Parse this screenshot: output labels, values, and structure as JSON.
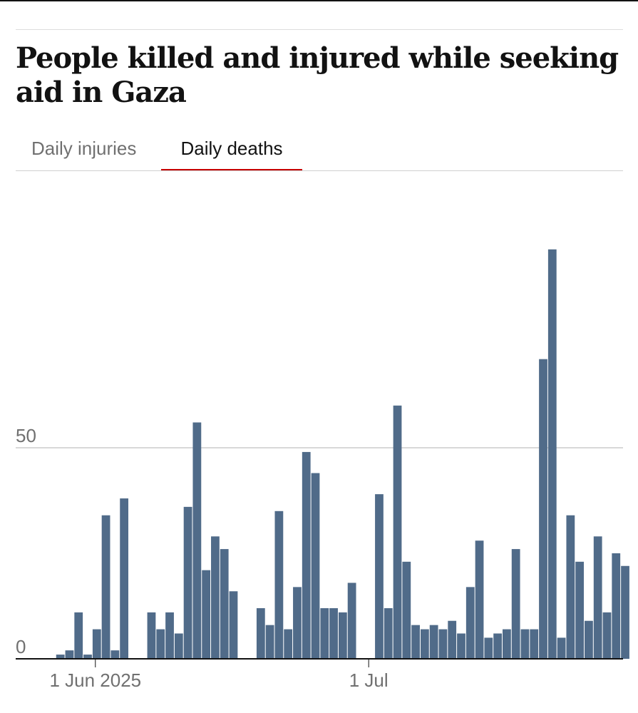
{
  "title": "People killed and injured while seeking aid in Gaza",
  "tabs": [
    {
      "label": "Daily injuries",
      "active": false
    },
    {
      "label": "Daily deaths",
      "active": true
    }
  ],
  "colors": {
    "bar": "#506b89",
    "gridline": "#cccccc",
    "baseline": "#121212",
    "tick_text": "#707070",
    "active_tab_underline": "#c70000"
  },
  "chart_data": {
    "type": "bar",
    "x_start": "2025-05-27",
    "x_end": "2025-08-01",
    "values": [
      0,
      1,
      2,
      11,
      1,
      7,
      34,
      2,
      38,
      0,
      0,
      11,
      7,
      11,
      6,
      36,
      56,
      21,
      29,
      26,
      16,
      0,
      0,
      12,
      8,
      35,
      7,
      17,
      49,
      44,
      12,
      12,
      11,
      18,
      0,
      0,
      39,
      12,
      60,
      23,
      8,
      7,
      8,
      7,
      9,
      6,
      17,
      28,
      5,
      6,
      7,
      26,
      7,
      7,
      71,
      97,
      5,
      34,
      23,
      9,
      29,
      11,
      25,
      22
    ],
    "yticks": [
      0,
      50
    ],
    "ylim": [
      0,
      101
    ],
    "xticks": [
      {
        "date": "2025-06-01",
        "label": "1 Jun 2025"
      },
      {
        "date": "2025-07-01",
        "label": "1 Jul"
      }
    ],
    "grid": true
  }
}
